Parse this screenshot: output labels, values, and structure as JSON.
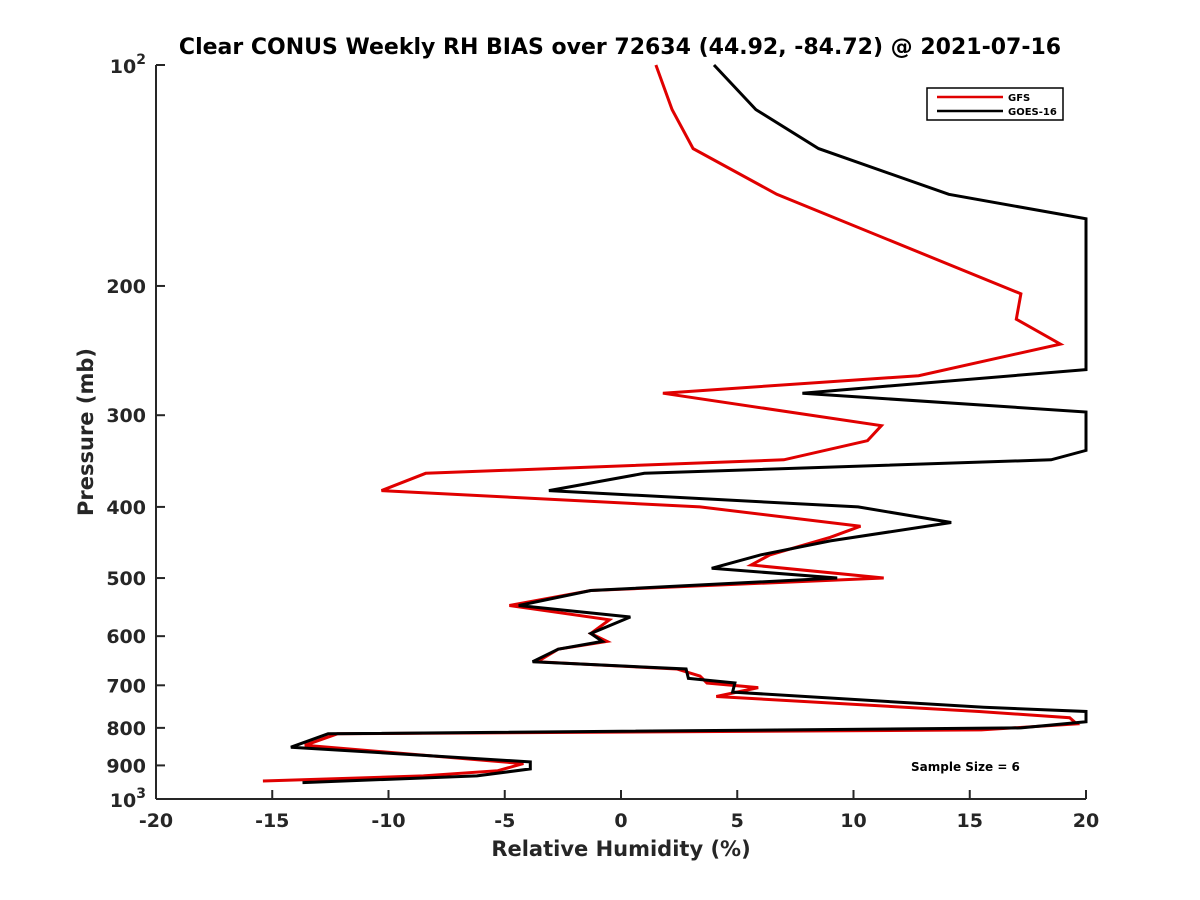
{
  "chart_data": {
    "type": "line",
    "title": "Clear CONUS Weekly RH BIAS over 72634 (44.92, -84.72) @ 2021-07-16",
    "xlabel": "Relative Humidity (%)",
    "ylabel": "Pressure (mb)",
    "xlim": [
      -20,
      20
    ],
    "ylim": [
      100,
      1000
    ],
    "y_scale": "log",
    "y_reversed": true,
    "x_ticks": [
      "-20",
      "-15",
      "-10",
      "-5",
      "0",
      "5",
      "10",
      "15",
      "20"
    ],
    "y_ticks": [
      {
        "value": 100,
        "base": "10",
        "exp": "2"
      },
      {
        "value": 200,
        "label": "200"
      },
      {
        "value": 300,
        "label": "300"
      },
      {
        "value": 400,
        "label": "400"
      },
      {
        "value": 500,
        "label": "500"
      },
      {
        "value": 600,
        "label": "600"
      },
      {
        "value": 700,
        "label": "700"
      },
      {
        "value": 800,
        "label": "800"
      },
      {
        "value": 900,
        "label": "900"
      },
      {
        "value": 1000,
        "base": "10",
        "exp": "3"
      }
    ],
    "legend_position": "top-right",
    "series": [
      {
        "name": "GFS",
        "color": "#e00000",
        "points": [
          [
            1.5,
            100
          ],
          [
            2.2,
            115
          ],
          [
            3.1,
            130
          ],
          [
            6.7,
            150
          ],
          [
            17.2,
            205
          ],
          [
            17.0,
            222
          ],
          [
            18.9,
            240
          ],
          [
            12.8,
            265
          ],
          [
            1.8,
            280
          ],
          [
            11.2,
            310
          ],
          [
            10.6,
            325
          ],
          [
            7.0,
            345
          ],
          [
            -8.4,
            360
          ],
          [
            -10.3,
            380
          ],
          [
            3.4,
            400
          ],
          [
            10.3,
            425
          ],
          [
            9.0,
            440
          ],
          [
            6.4,
            465
          ],
          [
            5.6,
            480
          ],
          [
            11.3,
            500
          ],
          [
            -1.3,
            520
          ],
          [
            -4.8,
            545
          ],
          [
            -0.5,
            570
          ],
          [
            -1.3,
            595
          ],
          [
            -0.6,
            610
          ],
          [
            -2.7,
            625
          ],
          [
            -3.6,
            650
          ],
          [
            2.4,
            665
          ],
          [
            3.4,
            680
          ],
          [
            3.7,
            695
          ],
          [
            5.9,
            705
          ],
          [
            4.1,
            725
          ],
          [
            15.4,
            760
          ],
          [
            19.3,
            775
          ],
          [
            19.6,
            790
          ],
          [
            15.5,
            805
          ],
          [
            -12.2,
            815
          ],
          [
            -13.6,
            845
          ],
          [
            -4.2,
            895
          ],
          [
            -5.3,
            915
          ],
          [
            -8.5,
            930
          ],
          [
            -15.4,
            945
          ]
        ]
      },
      {
        "name": "GOES-16",
        "color": "#000000",
        "points": [
          [
            4.0,
            100
          ],
          [
            5.8,
            115
          ],
          [
            8.5,
            130
          ],
          [
            14.1,
            150
          ],
          [
            20.0,
            162
          ],
          [
            20.0,
            260
          ],
          [
            7.8,
            280
          ],
          [
            20.0,
            297
          ],
          [
            20.0,
            335
          ],
          [
            18.5,
            345
          ],
          [
            1.0,
            360
          ],
          [
            -3.1,
            380
          ],
          [
            10.2,
            400
          ],
          [
            14.2,
            420
          ],
          [
            9.0,
            445
          ],
          [
            6.0,
            465
          ],
          [
            3.9,
            485
          ],
          [
            9.3,
            500
          ],
          [
            -1.3,
            520
          ],
          [
            -4.4,
            545
          ],
          [
            0.4,
            565
          ],
          [
            -1.3,
            595
          ],
          [
            -0.8,
            610
          ],
          [
            -2.7,
            625
          ],
          [
            -3.8,
            650
          ],
          [
            2.8,
            665
          ],
          [
            2.9,
            685
          ],
          [
            4.9,
            695
          ],
          [
            4.8,
            715
          ],
          [
            15.6,
            750
          ],
          [
            20.0,
            760
          ],
          [
            20.0,
            785
          ],
          [
            17.2,
            800
          ],
          [
            -12.6,
            815
          ],
          [
            -14.2,
            850
          ],
          [
            -3.9,
            890
          ],
          [
            -3.9,
            910
          ],
          [
            -6.2,
            930
          ],
          [
            -13.7,
            950
          ]
        ]
      }
    ],
    "annotations": [
      {
        "text": "Sample Size = 6",
        "position": "bottom-right"
      }
    ]
  }
}
